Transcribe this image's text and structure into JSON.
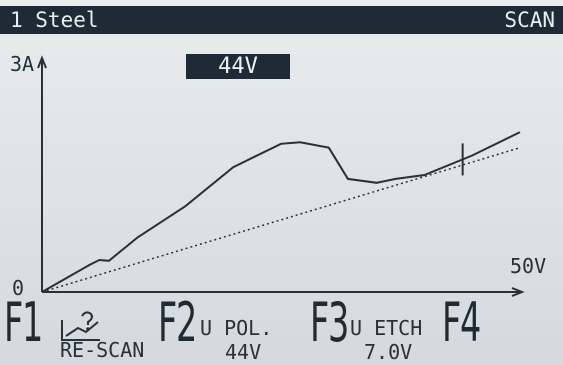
{
  "header": {
    "program": "1 Steel",
    "mode": "SCAN"
  },
  "readout": {
    "voltage": "44V"
  },
  "chart_data": {
    "type": "line",
    "title": "",
    "xlabel": "",
    "ylabel": "",
    "x_max_label": "50V",
    "y_max_label": "3A",
    "origin_label": "0",
    "xlim": [
      0,
      50
    ],
    "ylim": [
      0,
      3
    ],
    "marker_x": 44,
    "series": [
      {
        "x": [
          0,
          5,
          6,
          7,
          10,
          15,
          20,
          25,
          27,
          30,
          32,
          35,
          37,
          40,
          45,
          50
        ],
        "y": [
          0,
          0.35,
          0.41,
          0.4,
          0.7,
          1.1,
          1.6,
          1.9,
          1.92,
          1.85,
          1.45,
          1.4,
          1.45,
          1.5,
          1.75,
          2.05
        ]
      },
      {
        "x": [
          0,
          50
        ],
        "y": [
          0,
          1.85
        ]
      }
    ]
  },
  "function_keys": {
    "f1": {
      "key": "F1",
      "label": "RE-SCAN",
      "icon": "rescan-curve-icon"
    },
    "f2": {
      "key": "F2",
      "label_line1": "U POL.",
      "label_line2": "44V"
    },
    "f3": {
      "key": "F3",
      "label_line1": "U ETCH",
      "label_line2": "7.0V"
    },
    "f4": {
      "key": "F4"
    }
  }
}
